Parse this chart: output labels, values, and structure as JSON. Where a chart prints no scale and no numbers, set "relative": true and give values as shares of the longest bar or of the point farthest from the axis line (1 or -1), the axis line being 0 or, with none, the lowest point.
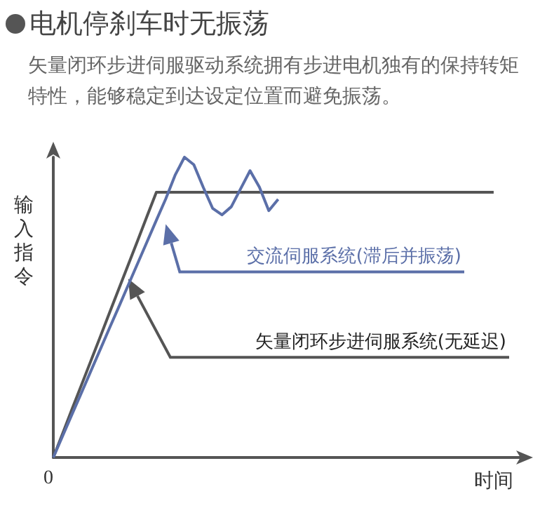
{
  "chart_data": {
    "type": "line",
    "title": "电机停刹车时无振荡",
    "subtitle": "矢量闭环步进伺服驱动系统拥有步进电机独有的保持转矩特性，能够稳定到达设定位置而避免振荡。",
    "xlabel": "时间",
    "ylabel": "输入指令",
    "relative": true,
    "marker": "none",
    "line_style": "solid",
    "categories": [
      null,
      null,
      null,
      null,
      null,
      null,
      null,
      null,
      null,
      null,
      null,
      null,
      null,
      null,
      null,
      null,
      null,
      null,
      null,
      null,
      null,
      null,
      null,
      null,
      null,
      null,
      null,
      null,
      null,
      null,
      null,
      null,
      null,
      null,
      null,
      null,
      null,
      null,
      null,
      null,
      null,
      null,
      null,
      null,
      null,
      null,
      null,
      null,
      null,
      null,
      null
    ],
    "series": [
      {
        "color": "#555555",
        "values": [
          0,
          0.08,
          0.161,
          0.241,
          0.321,
          0.401,
          0.482,
          0.562,
          0.642,
          0.722,
          0.803,
          0.883,
          0.883,
          0.883,
          0.883,
          0.883,
          0.883,
          0.883,
          0.883,
          0.883,
          0.883,
          0.883,
          0.883,
          0.883,
          0.883,
          0.883,
          0.883,
          0.883,
          0.883,
          0.883,
          0.883,
          0.883,
          0.883,
          0.883,
          0.883,
          0.883,
          0.883,
          0.883,
          0.883,
          0.883,
          0.883,
          0.883,
          0.883,
          0.883,
          0.883,
          0.883,
          0.883,
          0.883,
          null,
          null,
          null
        ]
      },
      {
        "color": "#5b6fa8",
        "values": [
          0,
          0.072,
          0.144,
          0.215,
          0.287,
          0.359,
          0.431,
          0.502,
          0.574,
          0.646,
          0.718,
          0.79,
          0.861,
          0.94,
          1,
          0.975,
          0.9,
          0.83,
          0.808,
          0.835,
          0.895,
          0.955,
          0.9,
          0.822,
          0.86,
          null,
          null,
          null,
          null,
          null,
          null,
          null,
          null,
          null,
          null,
          null,
          null,
          null,
          null,
          null,
          null,
          null,
          null,
          null,
          null,
          null,
          null,
          null,
          null,
          null,
          null
        ]
      }
    ],
    "annotations": [
      "0",
      "矢量闭环步进伺服系统(无延迟)",
      "交流伺服系统(滞后并振荡)"
    ]
  }
}
